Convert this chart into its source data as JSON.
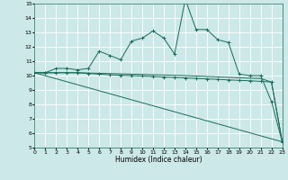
{
  "xlabel": "Humidex (Indice chaleur)",
  "bg_color": "#cce8e8",
  "grid_color": "#ffffff",
  "line_color": "#1a6b5b",
  "xlim": [
    0,
    23
  ],
  "ylim": [
    5,
    15
  ],
  "xticks": [
    0,
    1,
    2,
    3,
    4,
    5,
    6,
    7,
    8,
    9,
    10,
    11,
    12,
    13,
    14,
    15,
    16,
    17,
    18,
    19,
    20,
    21,
    22,
    23
  ],
  "yticks": [
    5,
    6,
    7,
    8,
    9,
    10,
    11,
    12,
    13,
    14,
    15
  ],
  "series1_x": [
    0,
    1,
    2,
    3,
    4,
    5,
    6,
    7,
    8,
    9,
    10,
    11,
    12,
    13,
    14,
    15,
    16,
    17,
    18,
    19,
    20,
    21,
    22,
    23
  ],
  "series1_y": [
    10.2,
    10.2,
    10.5,
    10.5,
    10.4,
    10.5,
    11.7,
    11.4,
    11.1,
    12.4,
    12.6,
    13.1,
    12.6,
    11.5,
    15.3,
    13.2,
    13.2,
    12.5,
    12.3,
    10.1,
    10.0,
    10.0,
    8.2,
    5.4
  ],
  "series2_x": [
    0,
    1,
    2,
    3,
    4,
    5,
    6,
    7,
    8,
    9,
    10,
    11,
    12,
    13,
    14,
    15,
    16,
    17,
    18,
    19,
    20,
    21,
    22,
    23
  ],
  "series2_y": [
    10.2,
    10.2,
    10.2,
    10.2,
    10.2,
    10.15,
    10.1,
    10.05,
    10.02,
    10.0,
    9.97,
    9.94,
    9.9,
    9.87,
    9.84,
    9.8,
    9.77,
    9.74,
    9.7,
    9.67,
    9.64,
    9.6,
    9.55,
    5.4
  ],
  "series3_x": [
    0,
    23
  ],
  "series3_y": [
    10.2,
    5.4
  ],
  "series4_x": [
    0,
    1,
    2,
    3,
    4,
    5,
    6,
    7,
    8,
    9,
    10,
    11,
    12,
    13,
    14,
    15,
    16,
    17,
    18,
    19,
    20,
    21,
    22,
    23
  ],
  "series4_y": [
    10.2,
    10.2,
    10.2,
    10.2,
    10.2,
    10.18,
    10.16,
    10.14,
    10.12,
    10.1,
    10.08,
    10.06,
    10.04,
    10.02,
    10.0,
    9.97,
    9.94,
    9.91,
    9.88,
    9.85,
    9.82,
    9.8,
    9.55,
    5.4
  ]
}
